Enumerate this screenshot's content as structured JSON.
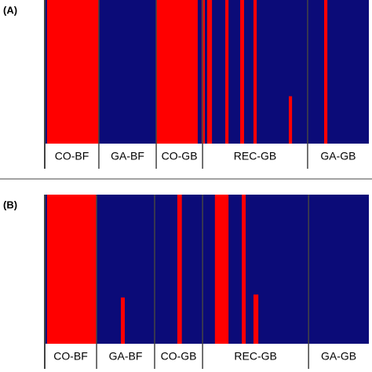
{
  "chart_data": [
    {
      "type": "structure",
      "label": "(A)",
      "xlim": [
        0,
        100
      ],
      "ylim": [
        0,
        1
      ],
      "background_color": "#0b0b78",
      "color": "#ff0000",
      "groups": [
        "CO-BF",
        "GA-BF",
        "CO-GB",
        "REC-GB",
        "GA-GB"
      ],
      "group_edges": [
        16.7,
        34.4,
        48.7,
        81.1
      ],
      "segments": [
        {
          "x": [
            0.7,
            16.7
          ],
          "value": 1
        },
        {
          "x": [
            34.4,
            47.2
          ],
          "value": 1
        },
        {
          "x": [
            48.4,
            49.4
          ],
          "value": 1
        },
        {
          "x": [
            50.1,
            51.6
          ],
          "value": 1
        },
        {
          "x": [
            55.7,
            56.7
          ],
          "value": 1
        },
        {
          "x": [
            60.3,
            61.5
          ],
          "value": 1
        },
        {
          "x": [
            64.4,
            65.4
          ],
          "value": 1
        },
        {
          "x": [
            75.3,
            76.3
          ],
          "value": 0.33
        },
        {
          "x": [
            86.2,
            87.2
          ],
          "value": 1
        }
      ]
    },
    {
      "type": "structure",
      "label": "(B)",
      "xlim": [
        0,
        100
      ],
      "ylim": [
        0,
        1
      ],
      "background_color": "#0b0b78",
      "color": "#ff0000",
      "groups": [
        "CO-BF",
        "GA-BF",
        "CO-GB",
        "REC-GB",
        "GA-GB"
      ],
      "group_edges": [
        16,
        33.9,
        48.7,
        81.4
      ],
      "segments": [
        {
          "x": [
            0.7,
            16
          ],
          "value": 1
        },
        {
          "x": [
            23.5,
            24.7
          ],
          "value": 0.31
        },
        {
          "x": [
            40.9,
            42.3
          ],
          "value": 1
        },
        {
          "x": [
            52.5,
            56.7
          ],
          "value": 1
        },
        {
          "x": [
            60.8,
            62
          ],
          "value": 1
        },
        {
          "x": [
            64.4,
            65.9
          ],
          "value": 0.33
        }
      ]
    }
  ]
}
